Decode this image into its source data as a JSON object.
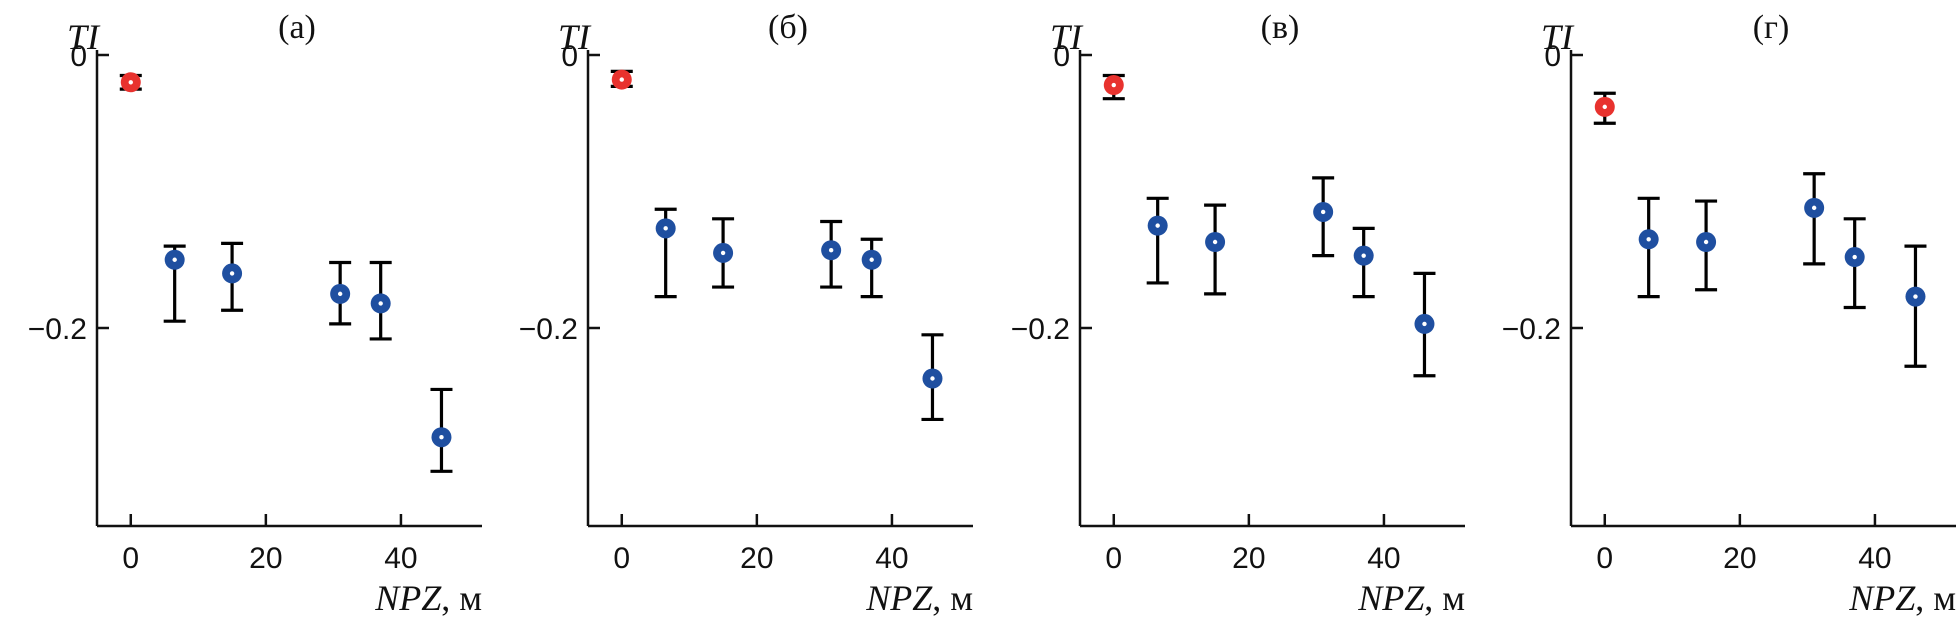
{
  "chart_data": [
    {
      "type": "scatter",
      "panel_label": "(а)",
      "ylabel": "TI",
      "xlabel_var": "NPZ",
      "xlabel_unit": ", м",
      "xlim": [
        -5,
        52
      ],
      "ylim": [
        -0.34,
        0.005
      ],
      "xticks": [
        0,
        20,
        40
      ],
      "yticks": [
        0,
        -0.2
      ],
      "ytick_labels": [
        "0",
        "−0.2"
      ],
      "colors": {
        "reference": "#e8322e",
        "sample": "#1f4fa0",
        "error": "#000000"
      },
      "points": [
        {
          "x": 0,
          "y": -0.02,
          "err_low": -0.025,
          "err_high": -0.015,
          "kind": "reference"
        },
        {
          "x": 6.5,
          "y": -0.15,
          "err_low": -0.195,
          "err_high": -0.14,
          "kind": "sample"
        },
        {
          "x": 15,
          "y": -0.16,
          "err_low": -0.187,
          "err_high": -0.138,
          "kind": "sample"
        },
        {
          "x": 31,
          "y": -0.175,
          "err_low": -0.197,
          "err_high": -0.152,
          "kind": "sample"
        },
        {
          "x": 37,
          "y": -0.182,
          "err_low": -0.208,
          "err_high": -0.152,
          "kind": "sample"
        },
        {
          "x": 46,
          "y": -0.28,
          "err_low": -0.305,
          "err_high": -0.245,
          "kind": "sample"
        }
      ]
    },
    {
      "type": "scatter",
      "panel_label": "(б)",
      "ylabel": "TI",
      "xlabel_var": "NPZ",
      "xlabel_unit": ", м",
      "xlim": [
        -5,
        52
      ],
      "ylim": [
        -0.34,
        0.005
      ],
      "xticks": [
        0,
        20,
        40
      ],
      "yticks": [
        0,
        -0.2
      ],
      "ytick_labels": [
        "0",
        "−0.2"
      ],
      "colors": {
        "reference": "#e8322e",
        "sample": "#1f4fa0",
        "error": "#000000"
      },
      "points": [
        {
          "x": 0,
          "y": -0.018,
          "err_low": -0.023,
          "err_high": -0.012,
          "kind": "reference"
        },
        {
          "x": 6.5,
          "y": -0.127,
          "err_low": -0.177,
          "err_high": -0.113,
          "kind": "sample"
        },
        {
          "x": 15,
          "y": -0.145,
          "err_low": -0.17,
          "err_high": -0.12,
          "kind": "sample"
        },
        {
          "x": 31,
          "y": -0.143,
          "err_low": -0.17,
          "err_high": -0.122,
          "kind": "sample"
        },
        {
          "x": 37,
          "y": -0.15,
          "err_low": -0.177,
          "err_high": -0.135,
          "kind": "sample"
        },
        {
          "x": 46,
          "y": -0.237,
          "err_low": -0.267,
          "err_high": -0.205,
          "kind": "sample"
        }
      ]
    },
    {
      "type": "scatter",
      "panel_label": "(в)",
      "ylabel": "TI",
      "xlabel_var": "NPZ",
      "xlabel_unit": ", м",
      "xlim": [
        -5,
        52
      ],
      "ylim": [
        -0.34,
        0.005
      ],
      "xticks": [
        0,
        20,
        40
      ],
      "yticks": [
        0,
        -0.2
      ],
      "ytick_labels": [
        "0",
        "−0.2"
      ],
      "colors": {
        "reference": "#e8322e",
        "sample": "#1f4fa0",
        "error": "#000000"
      },
      "points": [
        {
          "x": 0,
          "y": -0.022,
          "err_low": -0.032,
          "err_high": -0.015,
          "kind": "reference"
        },
        {
          "x": 6.5,
          "y": -0.125,
          "err_low": -0.167,
          "err_high": -0.105,
          "kind": "sample"
        },
        {
          "x": 15,
          "y": -0.137,
          "err_low": -0.175,
          "err_high": -0.11,
          "kind": "sample"
        },
        {
          "x": 31,
          "y": -0.115,
          "err_low": -0.147,
          "err_high": -0.09,
          "kind": "sample"
        },
        {
          "x": 37,
          "y": -0.147,
          "err_low": -0.177,
          "err_high": -0.127,
          "kind": "sample"
        },
        {
          "x": 46,
          "y": -0.197,
          "err_low": -0.235,
          "err_high": -0.16,
          "kind": "sample"
        }
      ]
    },
    {
      "type": "scatter",
      "panel_label": "(г)",
      "ylabel": "TI",
      "xlabel_var": "NPZ",
      "xlabel_unit": ", м",
      "xlim": [
        -5,
        52
      ],
      "ylim": [
        -0.34,
        0.005
      ],
      "xticks": [
        0,
        20,
        40
      ],
      "yticks": [
        0,
        -0.2
      ],
      "ytick_labels": [
        "0",
        "−0.2"
      ],
      "colors": {
        "reference": "#e8322e",
        "sample": "#1f4fa0",
        "error": "#000000"
      },
      "points": [
        {
          "x": 0,
          "y": -0.038,
          "err_low": -0.05,
          "err_high": -0.028,
          "kind": "reference"
        },
        {
          "x": 6.5,
          "y": -0.135,
          "err_low": -0.177,
          "err_high": -0.105,
          "kind": "sample"
        },
        {
          "x": 15,
          "y": -0.137,
          "err_low": -0.172,
          "err_high": -0.107,
          "kind": "sample"
        },
        {
          "x": 31,
          "y": -0.112,
          "err_low": -0.153,
          "err_high": -0.087,
          "kind": "sample"
        },
        {
          "x": 37,
          "y": -0.148,
          "err_low": -0.185,
          "err_high": -0.12,
          "kind": "sample"
        },
        {
          "x": 46,
          "y": -0.177,
          "err_low": -0.228,
          "err_high": -0.14,
          "kind": "sample"
        }
      ]
    }
  ]
}
